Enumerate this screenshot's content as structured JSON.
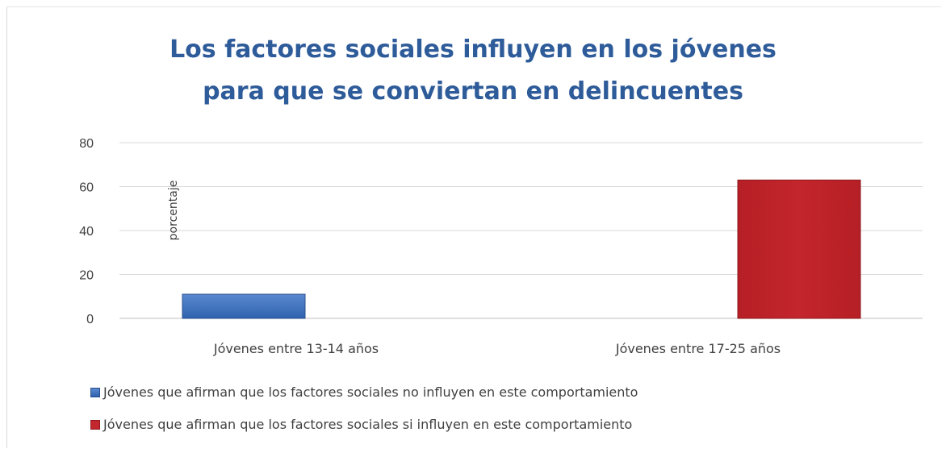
{
  "chart_data": {
    "type": "bar",
    "title_lines": [
      "Los factores sociales influyen en los jóvenes",
      "para que se conviertan en delincuentes"
    ],
    "categories": [
      "Jóvenes entre 13-14 años",
      "Jóvenes entre 17-25 años"
    ],
    "series": [
      {
        "name": "Jóvenes que afirman que los factores sociales no influyen en este comportamiento",
        "color": "#2f62ae",
        "values": [
          11,
          null
        ]
      },
      {
        "name": "Jóvenes que afirman que los factores sociales si influyen en este comportamiento",
        "color": "#c3262c",
        "values": [
          null,
          63
        ]
      }
    ],
    "ylabel": "porcentaje",
    "xlabel": "",
    "yticks": [
      "80",
      "60",
      "40",
      "20",
      "0"
    ],
    "ylim": [
      0,
      80
    ],
    "grid": true,
    "legend_position": "bottom"
  }
}
